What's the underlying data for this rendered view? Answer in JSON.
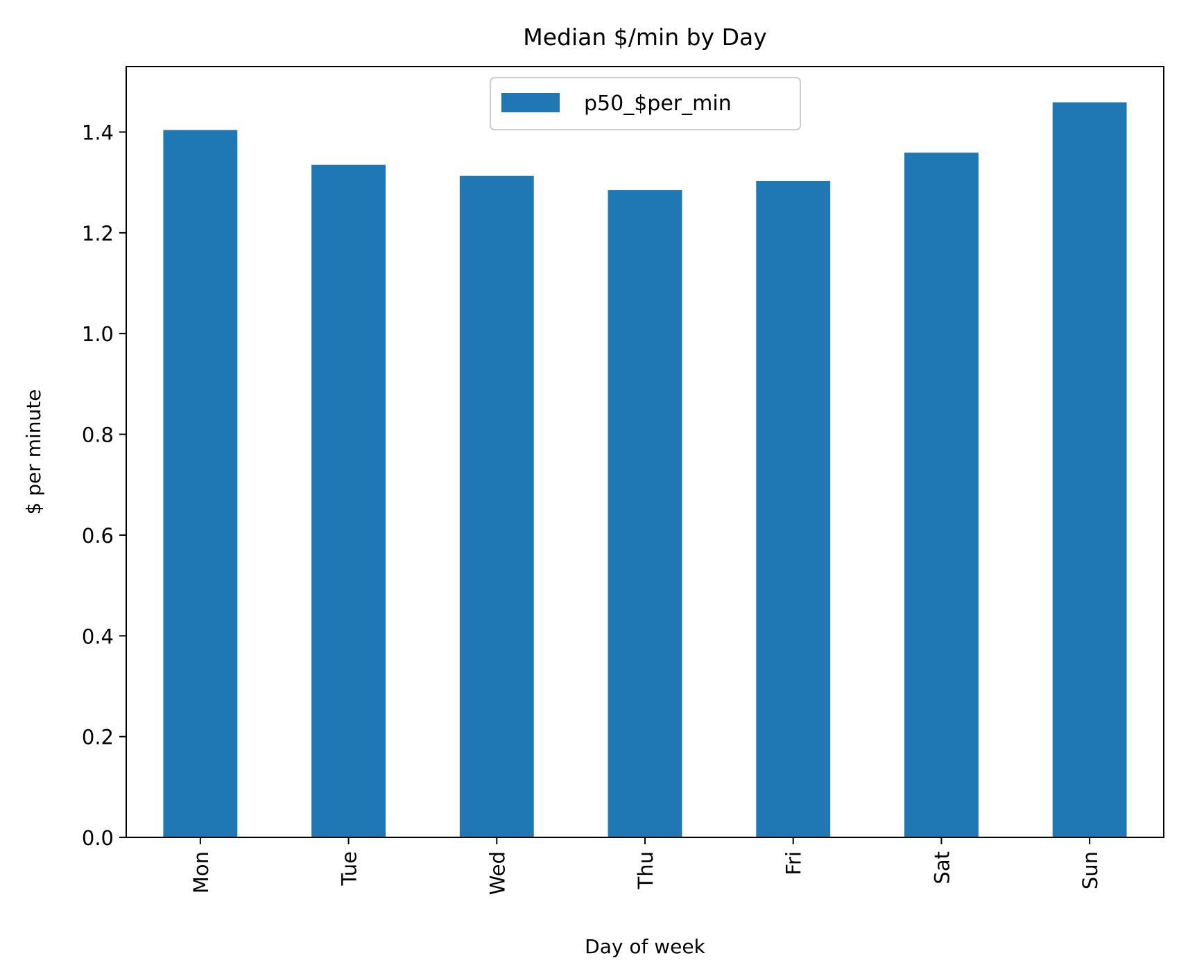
{
  "chart_data": {
    "type": "bar",
    "title": "Median $/min by Day",
    "xlabel": "Day of week",
    "ylabel": "$ per minute",
    "categories": [
      "Mon",
      "Tue",
      "Wed",
      "Thu",
      "Fri",
      "Sat",
      "Sun"
    ],
    "series": [
      {
        "name": "p50_$per_min",
        "color": "#1f77b4",
        "values": [
          1.404,
          1.335,
          1.313,
          1.285,
          1.303,
          1.359,
          1.459
        ]
      }
    ],
    "ylim": [
      0,
      1.53
    ],
    "yticks": [
      0.0,
      0.2,
      0.4,
      0.6,
      0.8,
      1.0,
      1.2,
      1.4
    ],
    "ytick_labels": [
      "0.0",
      "0.2",
      "0.4",
      "0.6",
      "0.8",
      "1.0",
      "1.2",
      "1.4"
    ],
    "grid": false,
    "legend_position": "top-center"
  }
}
